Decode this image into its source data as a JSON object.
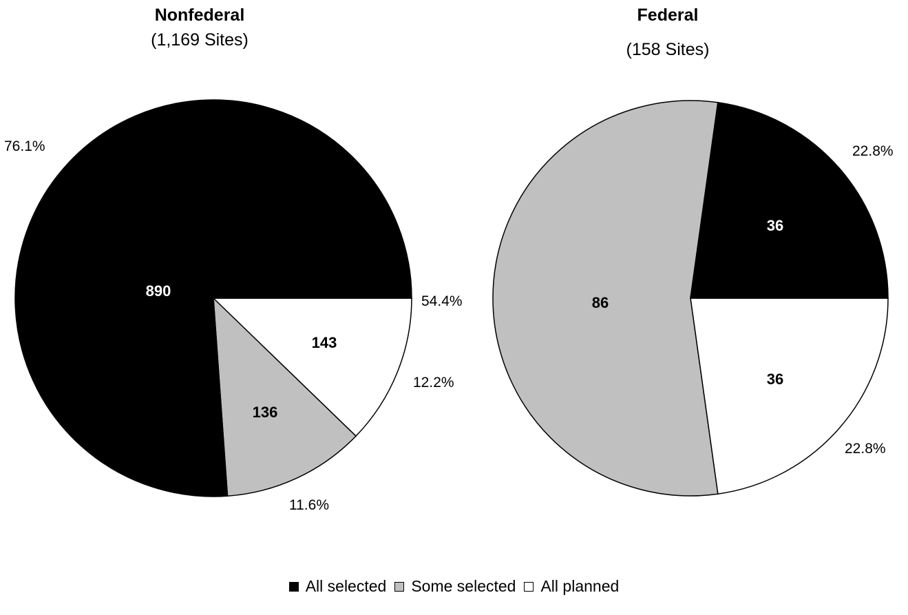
{
  "chart_data": [
    {
      "type": "pie",
      "title": "Nonfederal",
      "subtitle": "(1,169 Sites)",
      "slices": [
        {
          "name": "All selected",
          "value": 890,
          "percent_label": "76.1%"
        },
        {
          "name": "Some selected",
          "value": 136,
          "percent_label": "11.6%"
        },
        {
          "name": "All planned",
          "value": 143,
          "percent_label": "12.2%"
        }
      ],
      "extra_labels": [
        "54.4%"
      ]
    },
    {
      "type": "pie",
      "title": "Federal",
      "subtitle": "(158 Sites)",
      "slices": [
        {
          "name": "All selected",
          "value": 36,
          "percent_label": "22.8%"
        },
        {
          "name": "Some selected",
          "value": 86,
          "percent_label": ""
        },
        {
          "name": "All planned",
          "value": 36,
          "percent_label": "22.8%"
        }
      ],
      "extra_labels": []
    }
  ],
  "legend": [
    {
      "label": "All selected",
      "color": "#000000"
    },
    {
      "label": "Some selected",
      "color": "#c0c0c0"
    },
    {
      "label": "All planned",
      "color": "#ffffff"
    }
  ],
  "colors": {
    "All selected": "#000000",
    "Some selected": "#c0c0c0",
    "All planned": "#ffffff"
  }
}
